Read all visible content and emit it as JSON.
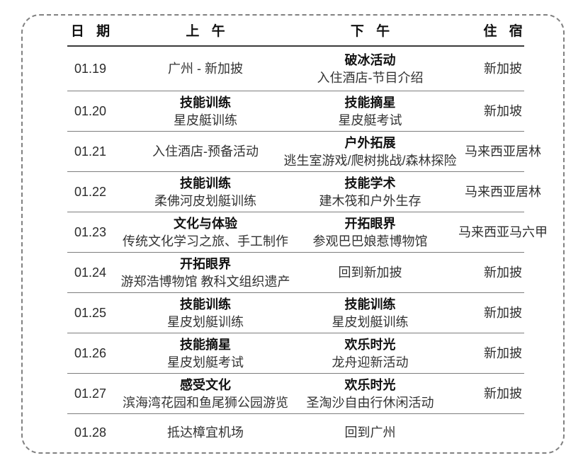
{
  "colors": {
    "frame_border": "#818181",
    "header_line": "#3a3a3a",
    "row_line": "#7d7d7d",
    "title_text": "#111111",
    "body_text": "#333333"
  },
  "table": {
    "headers": [
      {
        "label": "日 期"
      },
      {
        "label": "上 午"
      },
      {
        "label": "下 午"
      },
      {
        "label": "住 宿"
      }
    ],
    "rows": [
      {
        "date": "01.19",
        "morning": {
          "title": "",
          "subtitle": "广州 - 新加披"
        },
        "afternoon": {
          "title": "破冰活动",
          "subtitle": "入住酒店-节目介绍"
        },
        "stay": "新加披"
      },
      {
        "date": "01.20",
        "morning": {
          "title": "技能训练",
          "subtitle": "星皮艇训练"
        },
        "afternoon": {
          "title": "技能摘星",
          "subtitle": "星皮艇考试"
        },
        "stay": "新加坡"
      },
      {
        "date": "01.21",
        "morning": {
          "title": "",
          "subtitle": "入住酒店-预备活动"
        },
        "afternoon": {
          "title": "户外拓展",
          "subtitle": "逃生室游戏/爬树挑战/森林探险"
        },
        "stay": "马来西亚居林"
      },
      {
        "date": "01.22",
        "morning": {
          "title": "技能训练",
          "subtitle": "柔佛河皮划艇训练"
        },
        "afternoon": {
          "title": "技能学术",
          "subtitle": "建木筏和户外生存"
        },
        "stay": "马来西亚居林"
      },
      {
        "date": "01.23",
        "morning": {
          "title": "文化与体验",
          "subtitle": "传统文化学习之旅、手工制作"
        },
        "afternoon": {
          "title": "开拓眼界",
          "subtitle": "参观巴巴娘惹博物馆"
        },
        "stay": "马来西亚马六甲"
      },
      {
        "date": "01.24",
        "morning": {
          "title": "开拓眼界",
          "subtitle": "游郑浩博物馆 教科文组织遗产"
        },
        "afternoon": {
          "title": "",
          "subtitle": "回到新加披"
        },
        "stay": "新加披"
      },
      {
        "date": "01.25",
        "morning": {
          "title": "技能训练",
          "subtitle": "星皮划艇训练"
        },
        "afternoon": {
          "title": "技能训练",
          "subtitle": "星皮划艇训练"
        },
        "stay": "新加披"
      },
      {
        "date": "01.26",
        "morning": {
          "title": "技能摘星",
          "subtitle": "星皮划艇考试"
        },
        "afternoon": {
          "title": "欢乐时光",
          "subtitle": "龙舟迎新活动"
        },
        "stay": "新加披"
      },
      {
        "date": "01.27",
        "morning": {
          "title": "感受文化",
          "subtitle": "滨海湾花园和鱼尾狮公园游览"
        },
        "afternoon": {
          "title": "欢乐时光",
          "subtitle": "圣淘沙自由行休闲活动"
        },
        "stay": "新加披"
      },
      {
        "date": "01.28",
        "morning": {
          "title": "",
          "subtitle": "抵达樟宜机场"
        },
        "afternoon": {
          "title": "",
          "subtitle": "回到广州"
        },
        "stay": ""
      }
    ]
  }
}
